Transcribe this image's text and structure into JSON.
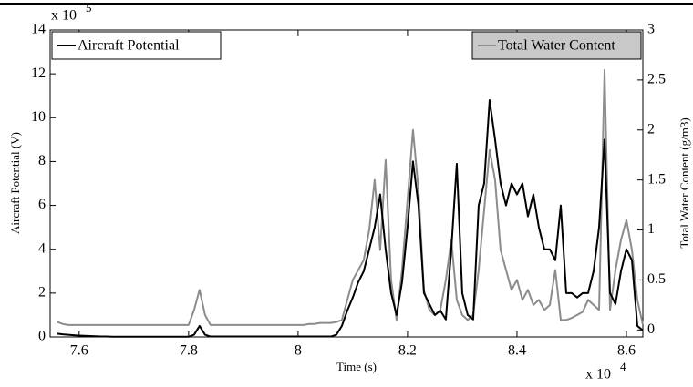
{
  "chart_data": {
    "type": "line",
    "xlabel": "Time (s)",
    "ylabel": "Aircraft Potential (V)",
    "y2label": "Total Water Content (g/m3)",
    "x_multiplier": {
      "base": "x 10",
      "exponent": "4"
    },
    "y_multiplier": {
      "base": "x 10",
      "exponent": "5"
    },
    "xlim": [
      7.547,
      8.63
    ],
    "ylim": [
      0,
      14
    ],
    "y2lim": [
      -0.07,
      3
    ],
    "xticks": [
      7.6,
      7.8,
      8,
      8.2,
      8.4,
      8.6
    ],
    "yticks": [
      0,
      2,
      4,
      6,
      8,
      10,
      12,
      14
    ],
    "y2ticks": [
      0,
      0.5,
      1,
      1.5,
      2,
      2.5,
      3
    ],
    "x": [
      7.56,
      7.57,
      7.58,
      7.59,
      7.6,
      7.61,
      7.62,
      7.63,
      7.64,
      7.65,
      7.66,
      7.67,
      7.68,
      7.69,
      7.7,
      7.71,
      7.72,
      7.73,
      7.74,
      7.75,
      7.76,
      7.77,
      7.78,
      7.79,
      7.8,
      7.81,
      7.82,
      7.83,
      7.84,
      7.85,
      7.86,
      7.87,
      7.88,
      7.89,
      7.9,
      7.91,
      7.92,
      7.93,
      7.94,
      7.95,
      7.96,
      7.97,
      7.98,
      7.99,
      8.0,
      8.01,
      8.02,
      8.03,
      8.04,
      8.05,
      8.06,
      8.07,
      8.08,
      8.09,
      8.1,
      8.11,
      8.12,
      8.13,
      8.14,
      8.15,
      8.16,
      8.17,
      8.18,
      8.19,
      8.2,
      8.21,
      8.22,
      8.23,
      8.24,
      8.25,
      8.26,
      8.27,
      8.28,
      8.29,
      8.3,
      8.31,
      8.32,
      8.33,
      8.34,
      8.35,
      8.36,
      8.37,
      8.38,
      8.39,
      8.4,
      8.41,
      8.42,
      8.43,
      8.44,
      8.45,
      8.46,
      8.47,
      8.48,
      8.49,
      8.5,
      8.51,
      8.52,
      8.53,
      8.54,
      8.55,
      8.56,
      8.57,
      8.58,
      8.59,
      8.6,
      8.61,
      8.62,
      8.63
    ],
    "series": [
      {
        "name": "Aircraft Potential",
        "color": "#000000",
        "axis": "y",
        "legend": "upper left",
        "values": [
          0.15,
          0.12,
          0.1,
          0.08,
          0.06,
          0.05,
          0.04,
          0.03,
          0.02,
          0.02,
          0.01,
          0.01,
          0.01,
          0.01,
          0.01,
          0.01,
          0.01,
          0.01,
          0.01,
          0.01,
          0.01,
          0.01,
          0.01,
          0.01,
          0.01,
          0.1,
          0.5,
          0.1,
          0.02,
          0.02,
          0.02,
          0.02,
          0.02,
          0.02,
          0.02,
          0.02,
          0.02,
          0.02,
          0.02,
          0.02,
          0.02,
          0.02,
          0.02,
          0.02,
          0.02,
          0.02,
          0.02,
          0.02,
          0.02,
          0.02,
          0.02,
          0.1,
          0.5,
          1.2,
          1.8,
          2.5,
          3,
          4,
          5,
          6.5,
          4,
          2,
          1,
          2.5,
          5,
          8,
          6,
          2,
          1.5,
          1,
          1.2,
          0.8,
          4,
          7.9,
          2,
          1,
          0.8,
          6,
          7,
          10.8,
          9,
          7,
          6,
          7,
          6.5,
          7,
          5.5,
          6.5,
          5,
          4,
          4,
          3.5,
          6,
          2,
          2,
          1.8,
          2,
          2,
          3,
          5,
          9,
          2,
          1.5,
          3,
          4,
          3.5,
          0.5,
          0.3
        ]
      },
      {
        "name": "Total Water Content",
        "color": "#8c8c8c",
        "axis": "y2",
        "legend": "upper right",
        "values": [
          0.08,
          0.06,
          0.05,
          0.05,
          0.05,
          0.05,
          0.05,
          0.05,
          0.05,
          0.05,
          0.05,
          0.05,
          0.05,
          0.05,
          0.05,
          0.05,
          0.05,
          0.05,
          0.05,
          0.05,
          0.05,
          0.05,
          0.05,
          0.05,
          0.05,
          0.2,
          0.4,
          0.15,
          0.05,
          0.05,
          0.05,
          0.05,
          0.05,
          0.05,
          0.05,
          0.05,
          0.05,
          0.05,
          0.05,
          0.05,
          0.05,
          0.05,
          0.05,
          0.05,
          0.05,
          0.05,
          0.06,
          0.06,
          0.07,
          0.07,
          0.07,
          0.08,
          0.1,
          0.3,
          0.5,
          0.6,
          0.7,
          1,
          1.5,
          0.8,
          1.7,
          0.5,
          0.1,
          0.6,
          1.3,
          2.0,
          1.4,
          0.4,
          0.2,
          0.15,
          0.2,
          0.5,
          0.9,
          0.3,
          0.15,
          0.1,
          0.15,
          0.6,
          1.2,
          1.8,
          1.5,
          0.8,
          0.6,
          0.4,
          0.5,
          0.3,
          0.4,
          0.25,
          0.3,
          0.2,
          0.25,
          0.6,
          0.1,
          0.1,
          0.12,
          0.15,
          0.18,
          0.3,
          0.25,
          0.2,
          2.6,
          0.2,
          0.6,
          0.9,
          1.1,
          0.8,
          0.3,
          0.05
        ]
      }
    ]
  }
}
